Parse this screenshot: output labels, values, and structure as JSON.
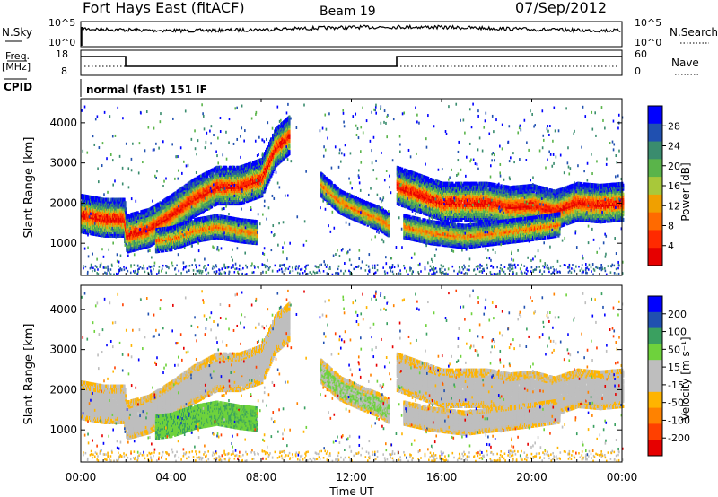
{
  "header": {
    "station": "Fort Hays East (fitACF)",
    "beam": "Beam 19",
    "date": "07/Sep/2012"
  },
  "top_panels": {
    "nsky_label": "N.Sky",
    "nsearch_label": "N.Search",
    "freq_label": "Freq.",
    "freq_unit": "[MHz]",
    "nave_label": "Nave",
    "cpid_label": "CPID",
    "cpid_value": "normal (fast) 151 IF",
    "nsky_ticks": [
      "10^5",
      "10^0"
    ],
    "nsearch_ticks": [
      "10^5",
      "10^0"
    ],
    "freq_ticks": [
      "18",
      "8"
    ],
    "nave_ticks": [
      "60",
      "0"
    ]
  },
  "colors": {
    "power_scale": [
      "#0000ff",
      "#2050b0",
      "#3a8c6e",
      "#5ab44a",
      "#a8c83a",
      "#f0a000",
      "#ff6a00",
      "#ff2a00",
      "#e60000"
    ],
    "velocity_scale": [
      "#0000ff",
      "#2050b0",
      "#3aa060",
      "#6ed23c",
      "#bebebe",
      "#bebebe",
      "#ffb400",
      "#ff8200",
      "#ff4000",
      "#e60000"
    ]
  },
  "chart_data": [
    {
      "type": "heatmap",
      "name": "power",
      "ylabel": "Slant Range [km]",
      "colorbar_label": "Power [dB]",
      "colorbar_ticks": [
        "28",
        "24",
        "20",
        "16",
        "12",
        "8",
        "4"
      ],
      "xlim_hours": [
        0,
        24
      ],
      "ylim": [
        200,
        4600
      ],
      "yticks": [
        "1000",
        "2000",
        "3000",
        "4000"
      ],
      "bands": [
        {
          "kind": "main",
          "points": [
            [
              0,
              1750
            ],
            [
              1,
              1650
            ],
            [
              1.9,
              1650
            ],
            [
              2.0,
              1250
            ],
            [
              3,
              1400
            ],
            [
              4,
              1750
            ],
            [
              5,
              2150
            ],
            [
              6,
              2450
            ],
            [
              7,
              2450
            ],
            [
              8,
              2650
            ],
            [
              8.6,
              3400
            ],
            [
              9.2,
              3700
            ]
          ]
        },
        {
          "kind": "lower",
          "points": [
            [
              3.3,
              1100
            ],
            [
              4,
              1150
            ],
            [
              5,
              1350
            ],
            [
              6,
              1450
            ],
            [
              7,
              1350
            ],
            [
              7.8,
              1300
            ]
          ]
        },
        {
          "kind": "evening",
          "points": [
            [
              10.6,
              2500
            ],
            [
              11.5,
              2050
            ],
            [
              12.5,
              1800
            ],
            [
              13.2,
              1650
            ],
            [
              13.6,
              1500
            ]
          ]
        },
        {
          "kind": "main",
          "points": [
            [
              14,
              2450
            ],
            [
              15,
              2250
            ],
            [
              16,
              2050
            ],
            [
              17,
              2050
            ],
            [
              18,
              2050
            ],
            [
              19,
              1950
            ],
            [
              20,
              2000
            ],
            [
              21,
              1850
            ],
            [
              22,
              2050
            ],
            [
              23,
              2000
            ],
            [
              24,
              2050
            ]
          ]
        },
        {
          "kind": "lower",
          "points": [
            [
              14.3,
              1450
            ],
            [
              15.5,
              1300
            ],
            [
              17,
              1200
            ],
            [
              18.5,
              1300
            ],
            [
              20,
              1400
            ],
            [
              21.2,
              1500
            ]
          ]
        }
      ]
    },
    {
      "type": "heatmap",
      "name": "velocity",
      "ylabel": "Slant Range [km]",
      "colorbar_label": "Velocity [m s⁻¹]",
      "colorbar_ticks": [
        "200",
        "100",
        "50",
        "15",
        "-15",
        "-50",
        "-100",
        "-200"
      ],
      "xlim_hours": [
        0,
        24
      ],
      "ylim": [
        200,
        4600
      ],
      "yticks": [
        "1000",
        "2000",
        "3000",
        "4000"
      ],
      "xticks": [
        "00:00",
        "04:00",
        "08:00",
        "12:00",
        "16:00",
        "20:00",
        "00:00"
      ],
      "xlabel": "Time UT"
    }
  ]
}
